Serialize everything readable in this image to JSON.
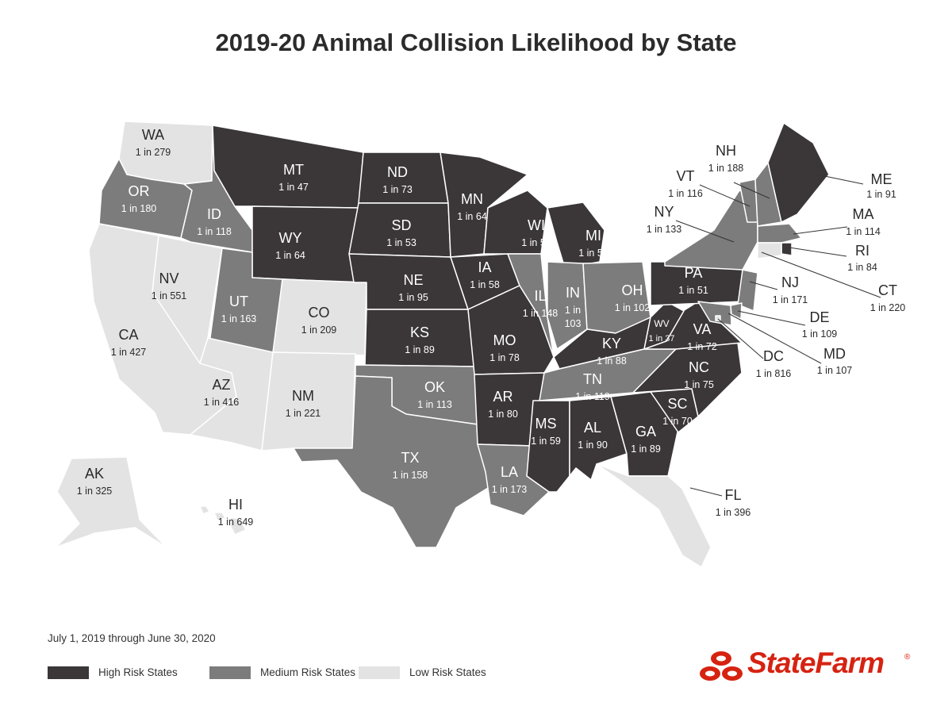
{
  "title": "2019-20 Animal Collision Likelihood by State",
  "date_range": "July 1, 2019 through June 30, 2020",
  "colors": {
    "high": "#3b3638",
    "medium": "#7c7c7c",
    "low": "#e3e3e3",
    "brand": "#d62311"
  },
  "legend": [
    {
      "key": "high",
      "label": "High Risk States"
    },
    {
      "key": "medium",
      "label": "Medium Risk States"
    },
    {
      "key": "low",
      "label": "Low Risk States"
    }
  ],
  "logo": {
    "text": "StateFarm",
    "reg": "®",
    "icon": "three-ovals-icon"
  },
  "states": [
    {
      "abbr": "WA",
      "odds": "1 in 279",
      "risk": "low"
    },
    {
      "abbr": "OR",
      "odds": "1 in 180",
      "risk": "medium"
    },
    {
      "abbr": "CA",
      "odds": "1 in 427",
      "risk": "low"
    },
    {
      "abbr": "NV",
      "odds": "1 in 551",
      "risk": "low"
    },
    {
      "abbr": "ID",
      "odds": "1 in 118",
      "risk": "medium"
    },
    {
      "abbr": "MT",
      "odds": "1 in 47",
      "risk": "high"
    },
    {
      "abbr": "WY",
      "odds": "1 in 64",
      "risk": "high"
    },
    {
      "abbr": "UT",
      "odds": "1 in 163",
      "risk": "medium"
    },
    {
      "abbr": "CO",
      "odds": "1 in 209",
      "risk": "low"
    },
    {
      "abbr": "AZ",
      "odds": "1 in 416",
      "risk": "low"
    },
    {
      "abbr": "NM",
      "odds": "1 in 221",
      "risk": "low"
    },
    {
      "abbr": "ND",
      "odds": "1 in 73",
      "risk": "high"
    },
    {
      "abbr": "SD",
      "odds": "1 in 53",
      "risk": "high"
    },
    {
      "abbr": "NE",
      "odds": "1 in 95",
      "risk": "high"
    },
    {
      "abbr": "KS",
      "odds": "1 in 89",
      "risk": "high"
    },
    {
      "abbr": "OK",
      "odds": "1 in 113",
      "risk": "medium"
    },
    {
      "abbr": "TX",
      "odds": "1 in 158",
      "risk": "medium"
    },
    {
      "abbr": "MN",
      "odds": "1 in 64",
      "risk": "high"
    },
    {
      "abbr": "IA",
      "odds": "1 in 58",
      "risk": "high"
    },
    {
      "abbr": "MO",
      "odds": "1 in 78",
      "risk": "high"
    },
    {
      "abbr": "AR",
      "odds": "1 in 80",
      "risk": "high"
    },
    {
      "abbr": "LA",
      "odds": "1 in 173",
      "risk": "medium"
    },
    {
      "abbr": "WI",
      "odds": "1 in 57",
      "risk": "high"
    },
    {
      "abbr": "IL",
      "odds": "1 in 148",
      "risk": "medium"
    },
    {
      "abbr": "MI",
      "odds": "1 in 54",
      "risk": "high"
    },
    {
      "abbr": "IN",
      "odds": "1 in 103",
      "risk": "medium"
    },
    {
      "abbr": "OH",
      "odds": "1 in 102",
      "risk": "medium"
    },
    {
      "abbr": "KY",
      "odds": "1 in 88",
      "risk": "high"
    },
    {
      "abbr": "TN",
      "odds": "1 in 119",
      "risk": "medium"
    },
    {
      "abbr": "MS",
      "odds": "1 in 59",
      "risk": "high"
    },
    {
      "abbr": "AL",
      "odds": "1 in 90",
      "risk": "high"
    },
    {
      "abbr": "GA",
      "odds": "1 in 89",
      "risk": "high"
    },
    {
      "abbr": "FL",
      "odds": "1 in 396",
      "risk": "low"
    },
    {
      "abbr": "SC",
      "odds": "1 in 70",
      "risk": "high"
    },
    {
      "abbr": "NC",
      "odds": "1 in 75",
      "risk": "high"
    },
    {
      "abbr": "VA",
      "odds": "1 in 72",
      "risk": "high"
    },
    {
      "abbr": "WV",
      "odds": "1 in 37",
      "risk": "high"
    },
    {
      "abbr": "PA",
      "odds": "1 in 51",
      "risk": "high"
    },
    {
      "abbr": "NY",
      "odds": "1 in 133",
      "risk": "medium"
    },
    {
      "abbr": "VT",
      "odds": "1 in 116",
      "risk": "medium"
    },
    {
      "abbr": "NH",
      "odds": "1 in 188",
      "risk": "medium"
    },
    {
      "abbr": "ME",
      "odds": "1 in 91",
      "risk": "high"
    },
    {
      "abbr": "MA",
      "odds": "1 in 114",
      "risk": "medium"
    },
    {
      "abbr": "RI",
      "odds": "1 in 84",
      "risk": "high"
    },
    {
      "abbr": "CT",
      "odds": "1 in 220",
      "risk": "low"
    },
    {
      "abbr": "NJ",
      "odds": "1 in 171",
      "risk": "medium"
    },
    {
      "abbr": "DE",
      "odds": "1 in 109",
      "risk": "medium"
    },
    {
      "abbr": "MD",
      "odds": "1 in 107",
      "risk": "medium"
    },
    {
      "abbr": "DC",
      "odds": "1 in 816",
      "risk": "low"
    },
    {
      "abbr": "AK",
      "odds": "1 in 325",
      "risk": "low"
    },
    {
      "abbr": "HI",
      "odds": "1 in 649",
      "risk": "low"
    }
  ]
}
